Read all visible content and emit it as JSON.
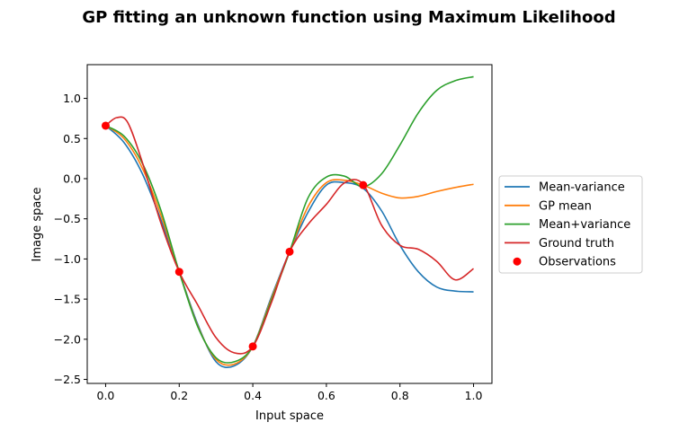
{
  "chart_data": {
    "type": "line",
    "title": "GP fitting an unknown function using Maximum Likelihood",
    "xlabel": "Input space",
    "ylabel": "Image space",
    "xlim": [
      -0.05,
      1.05
    ],
    "ylim": [
      -2.55,
      1.42
    ],
    "xticks": [
      0.0,
      0.2,
      0.4,
      0.6,
      0.8,
      1.0
    ],
    "xtick_labels": [
      "0.0",
      "0.2",
      "0.4",
      "0.6",
      "0.8",
      "1.0"
    ],
    "yticks": [
      -2.5,
      -2.0,
      -1.5,
      -1.0,
      -0.5,
      0.0,
      0.5,
      1.0
    ],
    "ytick_labels": [
      "−2.5",
      "−2.0",
      "−1.5",
      "−1.0",
      "−0.5",
      "0.0",
      "0.5",
      "1.0"
    ],
    "grid": false,
    "legend_placement": "outside-right",
    "series": [
      {
        "name": "Mean-variance",
        "color": "#1f77b4",
        "x": [
          0.0,
          0.05,
          0.1,
          0.15,
          0.2,
          0.25,
          0.3,
          0.35,
          0.4,
          0.45,
          0.5,
          0.55,
          0.6,
          0.65,
          0.7,
          0.75,
          0.8,
          0.85,
          0.9,
          0.95,
          1.0
        ],
        "y": [
          0.66,
          0.45,
          0.06,
          -0.51,
          -1.16,
          -1.81,
          -2.28,
          -2.33,
          -2.09,
          -1.48,
          -0.91,
          -0.42,
          -0.08,
          -0.05,
          -0.12,
          -0.4,
          -0.83,
          -1.16,
          -1.35,
          -1.4,
          -1.41
        ]
      },
      {
        "name": "GP mean",
        "color": "#ff7f0e",
        "x": [
          0.0,
          0.05,
          0.1,
          0.15,
          0.2,
          0.25,
          0.3,
          0.35,
          0.4,
          0.45,
          0.5,
          0.55,
          0.6,
          0.65,
          0.7,
          0.75,
          0.8,
          0.85,
          0.9,
          0.95,
          1.0
        ],
        "y": [
          0.66,
          0.5,
          0.13,
          -0.45,
          -1.16,
          -1.83,
          -2.25,
          -2.31,
          -2.09,
          -1.5,
          -0.91,
          -0.35,
          -0.05,
          -0.02,
          -0.08,
          -0.18,
          -0.24,
          -0.22,
          -0.16,
          -0.11,
          -0.07
        ]
      },
      {
        "name": "Mean+variance",
        "color": "#2ca02c",
        "x": [
          0.0,
          0.05,
          0.1,
          0.15,
          0.2,
          0.25,
          0.3,
          0.35,
          0.4,
          0.45,
          0.5,
          0.55,
          0.6,
          0.65,
          0.7,
          0.75,
          0.8,
          0.85,
          0.9,
          0.95,
          1.0
        ],
        "y": [
          0.66,
          0.53,
          0.19,
          -0.39,
          -1.16,
          -1.84,
          -2.23,
          -2.28,
          -2.09,
          -1.52,
          -0.91,
          -0.24,
          0.02,
          0.03,
          -0.1,
          0.06,
          0.42,
          0.82,
          1.1,
          1.22,
          1.27
        ]
      },
      {
        "name": "Ground truth",
        "color": "#d62728",
        "x": [
          0.0,
          0.03,
          0.06,
          0.1,
          0.15,
          0.2,
          0.25,
          0.3,
          0.35,
          0.4,
          0.45,
          0.5,
          0.55,
          0.6,
          0.65,
          0.7,
          0.75,
          0.8,
          0.85,
          0.9,
          0.95,
          1.0
        ],
        "y": [
          0.66,
          0.76,
          0.7,
          0.2,
          -0.55,
          -1.16,
          -1.57,
          -1.98,
          -2.17,
          -2.09,
          -1.55,
          -0.91,
          -0.57,
          -0.32,
          -0.05,
          -0.07,
          -0.58,
          -0.83,
          -0.88,
          -1.03,
          -1.26,
          -1.12
        ]
      }
    ],
    "scatter": {
      "name": "Observations",
      "color": "#ff0000",
      "x": [
        0.0,
        0.2,
        0.4,
        0.5,
        0.7
      ],
      "y": [
        0.66,
        -1.16,
        -2.09,
        -0.91,
        -0.08
      ]
    }
  }
}
